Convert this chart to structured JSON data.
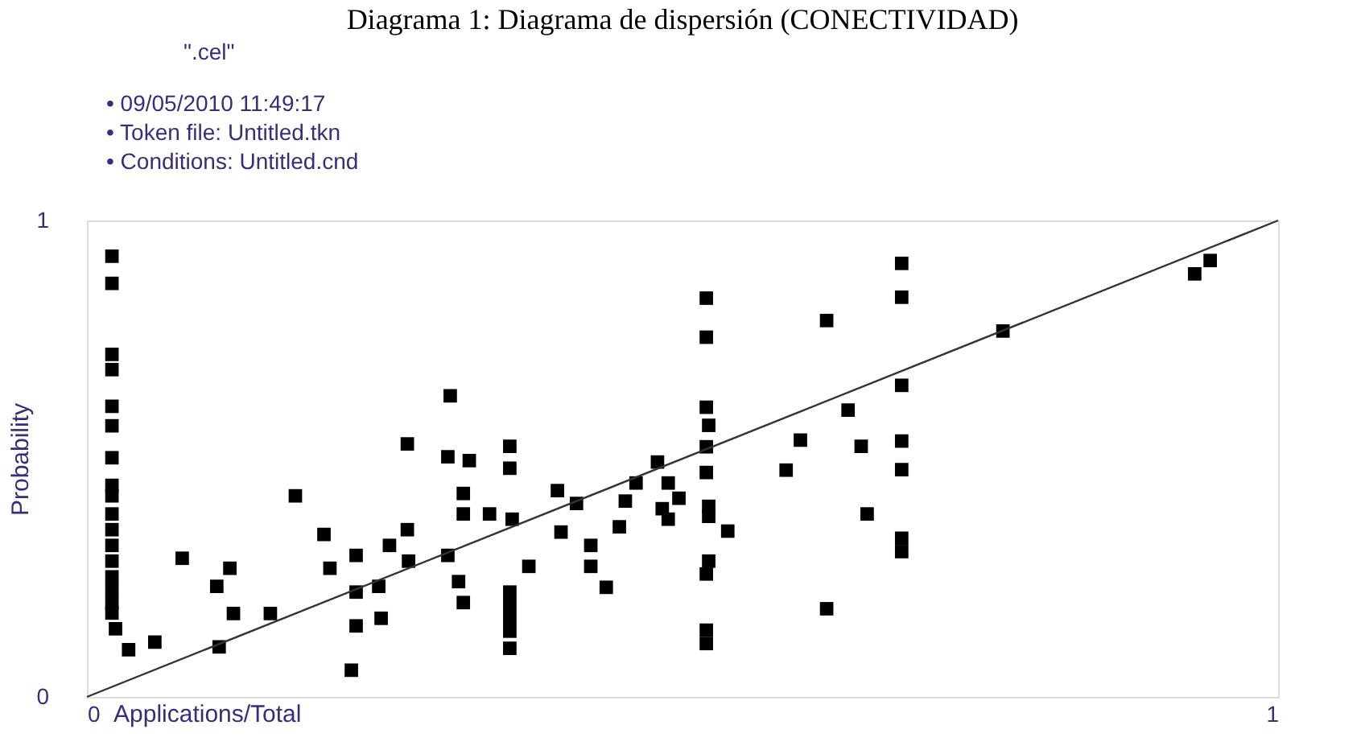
{
  "chart_data": {
    "type": "scatter",
    "title": "Diagrama 1: Diagrama de dispersión (CONECTIVIDAD)",
    "annotations": [
      "\".cel\"",
      "• 09/05/2010 11:49:17",
      "• Token file: Untitled.tkn",
      "• Conditions: Untitled.cnd"
    ],
    "xlabel": "Applications/Total",
    "ylabel": "Probability",
    "xlim": [
      0,
      1
    ],
    "ylim": [
      0,
      1
    ],
    "xticks": [
      0,
      1
    ],
    "yticks": [
      0,
      1
    ],
    "marker": "square",
    "series": [
      {
        "color": "#000000",
        "x": [
          0.021,
          0.021,
          0.021,
          0.021,
          0.021,
          0.021,
          0.021,
          0.021,
          0.021,
          0.021,
          0.021,
          0.021,
          0.021,
          0.021,
          0.021,
          0.021,
          0.021,
          0.035,
          0.024,
          0.057,
          0.111,
          0.123,
          0.154,
          0.109,
          0.12,
          0.08,
          0.175,
          0.222,
          0.199,
          0.226,
          0.245,
          0.204,
          0.226,
          0.254,
          0.269,
          0.247,
          0.226,
          0.269,
          0.305,
          0.303,
          0.321,
          0.303,
          0.316,
          0.316,
          0.338,
          0.357,
          0.312,
          0.316,
          0.355,
          0.355,
          0.371,
          0.355,
          0.355,
          0.355,
          0.355,
          0.355,
          0.27,
          0.395,
          0.411,
          0.398,
          0.423,
          0.423,
          0.436,
          0.447,
          0.452,
          0.461,
          0.479,
          0.483,
          0.488,
          0.497,
          0.488,
          0.52,
          0.52,
          0.522,
          0.52,
          0.52,
          0.52,
          0.522,
          0.522,
          0.538,
          0.522,
          0.52,
          0.52,
          0.52,
          0.621,
          0.599,
          0.587,
          0.639,
          0.65,
          0.655,
          0.621,
          0.684,
          0.684,
          0.684,
          0.684,
          0.684,
          0.684,
          0.684,
          0.769,
          0.943,
          0.93
        ],
        "values": [
          0.925,
          0.868,
          0.719,
          0.687,
          0.61,
          0.569,
          0.502,
          0.444,
          0.422,
          0.384,
          0.351,
          0.318,
          0.285,
          0.252,
          0.225,
          0.198,
          0.176,
          0.099,
          0.143,
          0.115,
          0.105,
          0.175,
          0.175,
          0.232,
          0.27,
          0.291,
          0.422,
          0.056,
          0.341,
          0.22,
          0.232,
          0.27,
          0.297,
          0.318,
          0.351,
          0.165,
          0.149,
          0.531,
          0.632,
          0.504,
          0.496,
          0.297,
          0.384,
          0.427,
          0.384,
          0.373,
          0.242,
          0.198,
          0.48,
          0.526,
          0.274,
          0.22,
          0.193,
          0.165,
          0.138,
          0.102,
          0.285,
          0.433,
          0.406,
          0.346,
          0.318,
          0.274,
          0.23,
          0.357,
          0.411,
          0.449,
          0.493,
          0.395,
          0.449,
          0.417,
          0.373,
          0.837,
          0.755,
          0.57,
          0.608,
          0.525,
          0.471,
          0.4,
          0.379,
          0.348,
          0.285,
          0.258,
          0.14,
          0.112,
          0.79,
          0.539,
          0.476,
          0.602,
          0.526,
          0.384,
          0.185,
          0.91,
          0.839,
          0.654,
          0.537,
          0.477,
          0.333,
          0.305,
          0.768,
          0.916,
          0.888
        ]
      },
      {
        "type": "line",
        "marker": "none",
        "line_style": "solid",
        "color": "#333333",
        "x": [
          0,
          1
        ],
        "values": [
          0,
          1
        ]
      }
    ]
  }
}
